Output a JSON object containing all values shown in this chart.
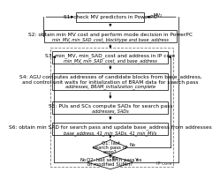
{
  "s1_text": "S1: check MV predictors in PowerPC",
  "s2_text": "S2: obtain min MV cost and perform mode decision in PowerPC",
  "s2_sub": "min_MV, min_SAD_cost, blocktype and base_address",
  "s3_text": "S3: min_MV, min_SAD_cost and address in IP core",
  "s3_sub": "min_MV, min_SAD_cost, and base_address",
  "s4_text": "S4: AGU computes addresses of candidate blocks from base_address,\nand control unit waits for initialization of BRAM data for search pass",
  "s4_sub": "addresses, BRAM_initialization_complete",
  "s5_text": "S5: PUs and SCs compute SADs for search pass",
  "s5_sub": "addresses, SADs",
  "s6_text": "S6: obtain min SAD for search pass and update base_address from addresses",
  "s6_sub": "base_address, 41_min_SADs, 41_min_MVs",
  "q1_text": "Q1: last\nsearch pass of\nseqp?",
  "q2_text": "Q2: last search pass\nof modified SUMH?",
  "mv1_label": "MV₁",
  "yes_label": "Yes",
  "no_label": "No",
  "ipcore_label": "IP core",
  "bg_color": "#ffffff",
  "box_fc": "#ffffff",
  "box_ec": "#000000",
  "dash_ec": "#777777",
  "fs_main": 4.2,
  "fs_sub": 3.6,
  "fs_label": 3.8
}
